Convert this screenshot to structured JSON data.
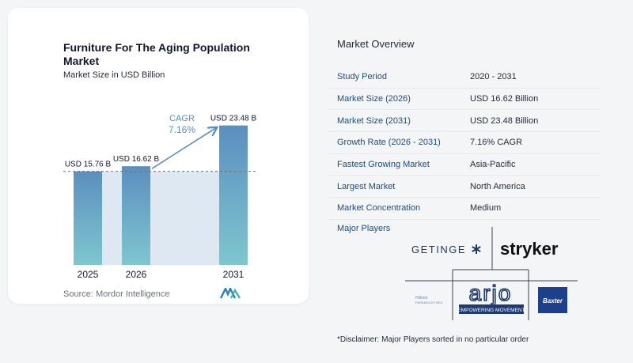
{
  "chart": {
    "title": "Furniture For The Aging Population Market",
    "subtitle": "Market Size in USD Billion",
    "source": "Source:  Mordor Intelligence",
    "cagr_label": "CAGR",
    "cagr_value": "7.16%"
  },
  "chart_data": {
    "type": "bar",
    "categories": [
      "2025",
      "2026",
      "2031"
    ],
    "values": [
      15.76,
      16.62,
      23.48
    ],
    "data_labels": [
      "USD 15.76 B",
      "USD 16.62 B",
      "USD 23.48 B"
    ],
    "title": "Furniture For The Aging Population Market",
    "subtitle": "Market Size in USD Billion",
    "xlabel": "",
    "ylabel": "",
    "ylim": [
      0,
      24.5
    ],
    "grid": false,
    "reference_line": 15.76,
    "colors": {
      "bar_top": "#5b8fbf",
      "bar_bottom": "#7fc6cf",
      "shade": "#dde8f2",
      "arrow": "#5b8fbf",
      "cagr_text": "#5b8fbf"
    }
  },
  "overview": {
    "title": "Market Overview",
    "rows": [
      {
        "label": "Study Period",
        "value": "2020 - 2031"
      },
      {
        "label": "Market Size (2026)",
        "value": "USD 16.62 Billion"
      },
      {
        "label": "Market Size (2031)",
        "value": "USD 23.48 Billion"
      },
      {
        "label": "Growth Rate (2026 - 2031)",
        "value": "7.16% CAGR"
      },
      {
        "label": "Fastest Growing Market",
        "value": "Asia-Pacific"
      },
      {
        "label": "Largest Market",
        "value": "North America"
      },
      {
        "label": "Market Concentration",
        "value": "Medium"
      }
    ]
  },
  "players": {
    "title": "Major Players",
    "logos": {
      "getinge": "GETINGE",
      "stryker": "stryker",
      "arjo": "arjo",
      "arjo_tagline": "EMPOWERING MOVEMENT",
      "baxter": "Baxter",
      "hillrom_line1": "Hillrom",
      "hillrom_line2": "PARAMOUNT BED"
    }
  },
  "disclaimer": "*Disclaimer: Major Players sorted in no particular order"
}
